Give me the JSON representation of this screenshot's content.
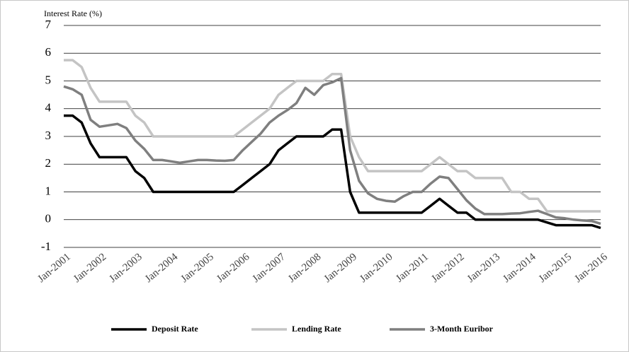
{
  "chart_data": {
    "type": "line",
    "ylabel": "Interest Rate (%)",
    "categories": [
      "Jan-2001",
      null,
      null,
      null,
      "Jan-2002",
      null,
      null,
      null,
      "Jan-2003",
      null,
      null,
      null,
      "Jan-2004",
      null,
      null,
      null,
      "Jan-2005",
      null,
      null,
      null,
      "Jan-2006",
      null,
      null,
      null,
      "Jan-2007",
      null,
      null,
      null,
      "Jan-2008",
      null,
      null,
      null,
      "Jan-2009",
      null,
      null,
      null,
      "Jan-2010",
      null,
      null,
      null,
      "Jan-2011",
      null,
      null,
      null,
      "Jan-2012",
      null,
      null,
      null,
      "Jan-2013",
      null,
      null,
      null,
      "Jan-2014",
      null,
      null,
      null,
      "Jan-2015",
      null,
      null,
      null,
      "Jan-2016"
    ],
    "series": [
      {
        "name": "Deposit Rate",
        "color": "#000000",
        "values": [
          3.75,
          3.75,
          3.5,
          2.75,
          2.25,
          2.25,
          2.25,
          2.25,
          1.75,
          1.5,
          1.0,
          1.0,
          1.0,
          1.0,
          1.0,
          1.0,
          1.0,
          1.0,
          1.0,
          1.0,
          1.25,
          1.5,
          1.75,
          2.0,
          2.5,
          2.75,
          3.0,
          3.0,
          3.0,
          3.0,
          3.25,
          3.25,
          1.0,
          0.25,
          0.25,
          0.25,
          0.25,
          0.25,
          0.25,
          0.25,
          0.25,
          0.5,
          0.75,
          0.5,
          0.25,
          0.25,
          0,
          0,
          0,
          0,
          0,
          0,
          0,
          0,
          -0.1,
          -0.2,
          -0.2,
          -0.2,
          -0.2,
          -0.2,
          -0.3
        ]
      },
      {
        "name": "Lending Rate",
        "color": "#c4c4c4",
        "values": [
          5.75,
          5.75,
          5.5,
          4.75,
          4.25,
          4.25,
          4.25,
          4.25,
          3.75,
          3.5,
          3.0,
          3.0,
          3.0,
          3.0,
          3.0,
          3.0,
          3.0,
          3.0,
          3.0,
          3.0,
          3.25,
          3.5,
          3.75,
          4.0,
          4.5,
          4.75,
          5.0,
          5.0,
          5.0,
          5.0,
          5.25,
          5.25,
          3.0,
          2.25,
          1.75,
          1.75,
          1.75,
          1.75,
          1.75,
          1.75,
          1.75,
          2.0,
          2.25,
          2.0,
          1.75,
          1.75,
          1.5,
          1.5,
          1.5,
          1.5,
          1.0,
          1.0,
          0.75,
          0.75,
          0.3,
          0.3,
          0.3,
          0.3,
          0.3,
          0.3,
          0.3
        ]
      },
      {
        "name": "3-Month Euribor",
        "color": "#7f7f7f",
        "values": [
          4.8,
          4.7,
          4.5,
          3.6,
          3.35,
          3.4,
          3.45,
          3.3,
          2.85,
          2.55,
          2.15,
          2.15,
          2.1,
          2.05,
          2.1,
          2.15,
          2.15,
          2.13,
          2.12,
          2.15,
          2.5,
          2.8,
          3.1,
          3.5,
          3.75,
          3.95,
          4.2,
          4.75,
          4.5,
          4.85,
          4.95,
          5.1,
          2.5,
          1.4,
          0.95,
          0.75,
          0.68,
          0.65,
          0.85,
          1.0,
          1.0,
          1.3,
          1.55,
          1.5,
          1.1,
          0.7,
          0.4,
          0.2,
          0.2,
          0.2,
          0.22,
          0.23,
          0.28,
          0.32,
          0.2,
          0.08,
          0.05,
          0.0,
          -0.03,
          -0.05,
          -0.15
        ]
      }
    ],
    "ylim": [
      -1,
      7
    ],
    "yticks": [
      -1,
      0,
      1,
      2,
      3,
      4,
      5,
      6,
      7
    ],
    "grid": true,
    "legend": "bottom"
  }
}
